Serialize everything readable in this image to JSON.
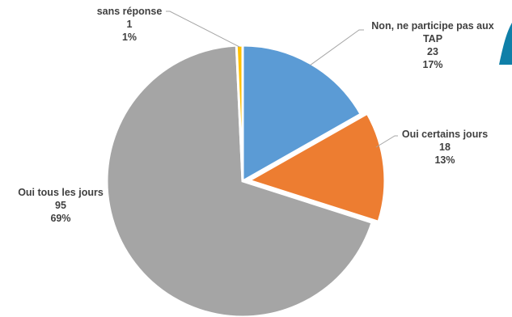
{
  "chart_data": {
    "type": "pie",
    "title": "",
    "start_at": "top",
    "direction": "clockwise",
    "slices": [
      {
        "label": "Non, ne participe pas aux TAP",
        "label_lines": [
          "Non, ne participe pas aux",
          "TAP"
        ],
        "count": "23",
        "percent": "17%",
        "value": 23,
        "color": "#5b9bd5"
      },
      {
        "label": "Oui certains jours",
        "label_lines": [
          "Oui certains jours"
        ],
        "count": "18",
        "percent": "13%",
        "value": 18,
        "color": "#ed7d31"
      },
      {
        "label": "Oui tous les jours",
        "label_lines": [
          "Oui tous les jours"
        ],
        "count": "95",
        "percent": "69%",
        "value": 95,
        "color": "#a5a5a5"
      },
      {
        "label": "sans réponse",
        "label_lines": [
          "sans réponse"
        ],
        "count": "1",
        "percent": "1%",
        "value": 1,
        "color": "#ffc000"
      }
    ]
  }
}
